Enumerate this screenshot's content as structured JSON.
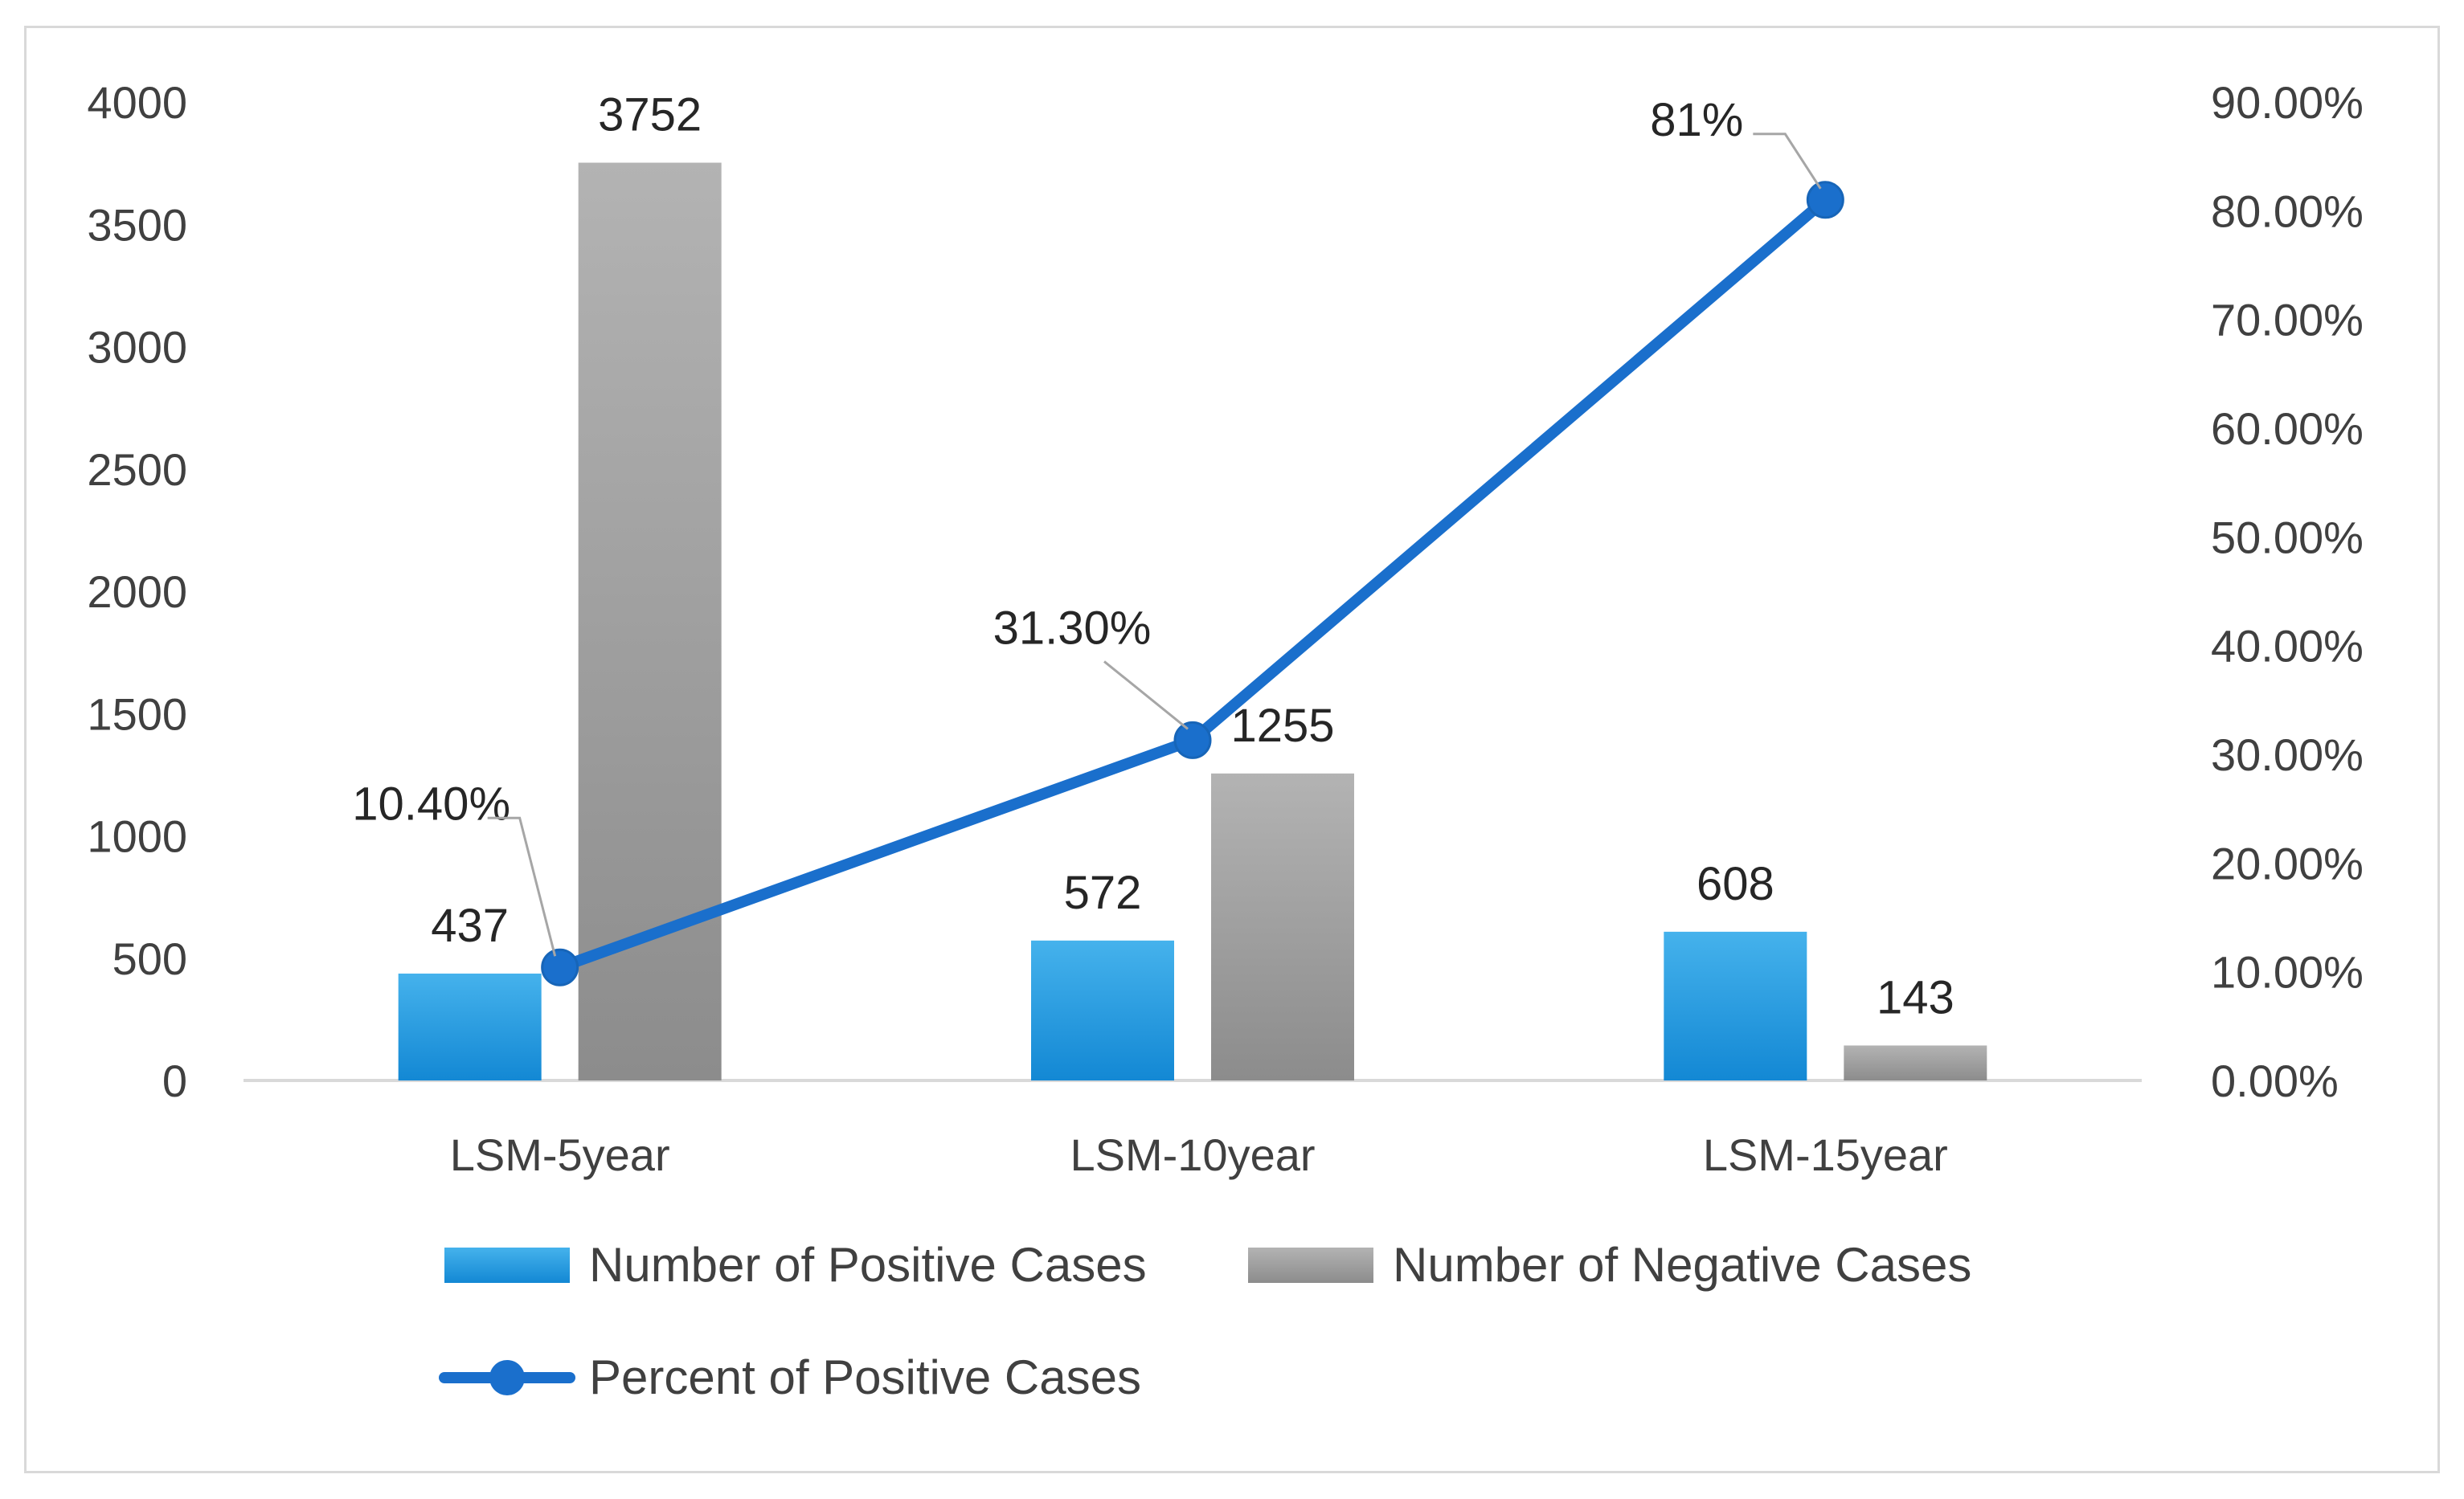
{
  "chart_data": {
    "type": "bar",
    "title": "",
    "xlabel": "",
    "ylabel": "",
    "categories": [
      "LSM-5year",
      "LSM-10year",
      "LSM-15year"
    ],
    "series": [
      {
        "name": "Number of Positive Cases",
        "kind": "bar",
        "axis": "left",
        "values": [
          437,
          572,
          608
        ],
        "color": "#1f9be0"
      },
      {
        "name": "Number of Negative Cases",
        "kind": "bar",
        "axis": "left",
        "values": [
          3752,
          1255,
          143
        ],
        "color": "#a6a6a6"
      },
      {
        "name": "Percent of Positive Cases",
        "kind": "line",
        "axis": "right",
        "values": [
          10.4,
          31.3,
          81
        ],
        "color": "#1a6fcc"
      }
    ],
    "data_labels": {
      "positive": [
        "437",
        "572",
        "608"
      ],
      "negative": [
        "3752",
        "1255",
        "143"
      ],
      "percent": [
        "10.40%",
        "31.30%",
        "81%"
      ]
    },
    "y_left": {
      "ylim": [
        0,
        4000
      ],
      "ticks": [
        0,
        500,
        1000,
        1500,
        2000,
        2500,
        3000,
        3500,
        4000
      ],
      "tick_labels": [
        "0",
        "500",
        "1000",
        "1500",
        "2000",
        "2500",
        "3000",
        "3500",
        "4000"
      ]
    },
    "y_right": {
      "ylim": [
        0,
        90
      ],
      "ticks": [
        0,
        10,
        20,
        30,
        40,
        50,
        60,
        70,
        80,
        90
      ],
      "tick_labels": [
        "0.00%",
        "10.00%",
        "20.00%",
        "30.00%",
        "40.00%",
        "50.00%",
        "60.00%",
        "70.00%",
        "80.00%",
        "90.00%"
      ]
    },
    "grid": false,
    "legend_position": "bottom"
  }
}
